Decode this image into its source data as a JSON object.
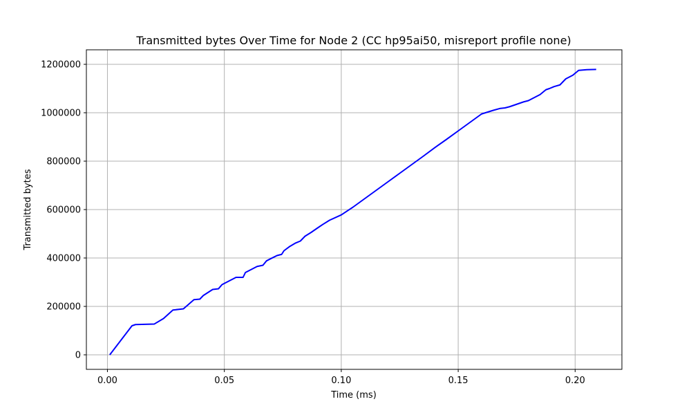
{
  "chart_data": {
    "type": "line",
    "title": "Transmitted bytes Over Time for Node 2 (CC hp95ai50, misreport profile none)",
    "xlabel": "Time (ms)",
    "ylabel": "Transmitted bytes",
    "xlim": [
      -0.009,
      0.22
    ],
    "ylim": [
      -60000,
      1260000
    ],
    "xticks": [
      0.0,
      0.05,
      0.1,
      0.15,
      0.2
    ],
    "xtick_labels": [
      "0.00",
      "0.05",
      "0.10",
      "0.15",
      "0.20"
    ],
    "yticks": [
      0,
      200000,
      400000,
      600000,
      800000,
      1000000,
      1200000
    ],
    "ytick_labels": [
      "0",
      "200000",
      "400000",
      "600000",
      "800000",
      "1000000",
      "1200000"
    ],
    "grid": true,
    "series": [
      {
        "color": "#0000ff",
        "x": [
          0.001,
          0.0105,
          0.012,
          0.02,
          0.024,
          0.028,
          0.0325,
          0.037,
          0.0395,
          0.041,
          0.045,
          0.0475,
          0.049,
          0.052,
          0.055,
          0.058,
          0.059,
          0.062,
          0.064,
          0.0665,
          0.068,
          0.07,
          0.0725,
          0.0745,
          0.0755,
          0.078,
          0.0805,
          0.0825,
          0.0845,
          0.087,
          0.09,
          0.092,
          0.095,
          0.1,
          0.105,
          0.11,
          0.115,
          0.12,
          0.125,
          0.13,
          0.135,
          0.14,
          0.145,
          0.15,
          0.155,
          0.16,
          0.165,
          0.168,
          0.17,
          0.172,
          0.175,
          0.178,
          0.18,
          0.182,
          0.185,
          0.1875,
          0.189,
          0.191,
          0.1935,
          0.196,
          0.199,
          0.2015,
          0.205,
          0.209
        ],
        "y": [
          0,
          120000,
          125000,
          127000,
          150000,
          185000,
          190000,
          228000,
          230000,
          245000,
          270000,
          273000,
          290000,
          305000,
          320000,
          320000,
          340000,
          355000,
          365000,
          370000,
          388000,
          398000,
          410000,
          415000,
          430000,
          448000,
          462000,
          470000,
          490000,
          505000,
          525000,
          538000,
          556000,
          578000,
          610000,
          645000,
          680000,
          715000,
          750000,
          785000,
          820000,
          856000,
          890000,
          925000,
          960000,
          995000,
          1010000,
          1018000,
          1020000,
          1025000,
          1035000,
          1045000,
          1050000,
          1060000,
          1075000,
          1095000,
          1100000,
          1108000,
          1115000,
          1140000,
          1155000,
          1175000,
          1178000,
          1179000
        ]
      }
    ]
  }
}
